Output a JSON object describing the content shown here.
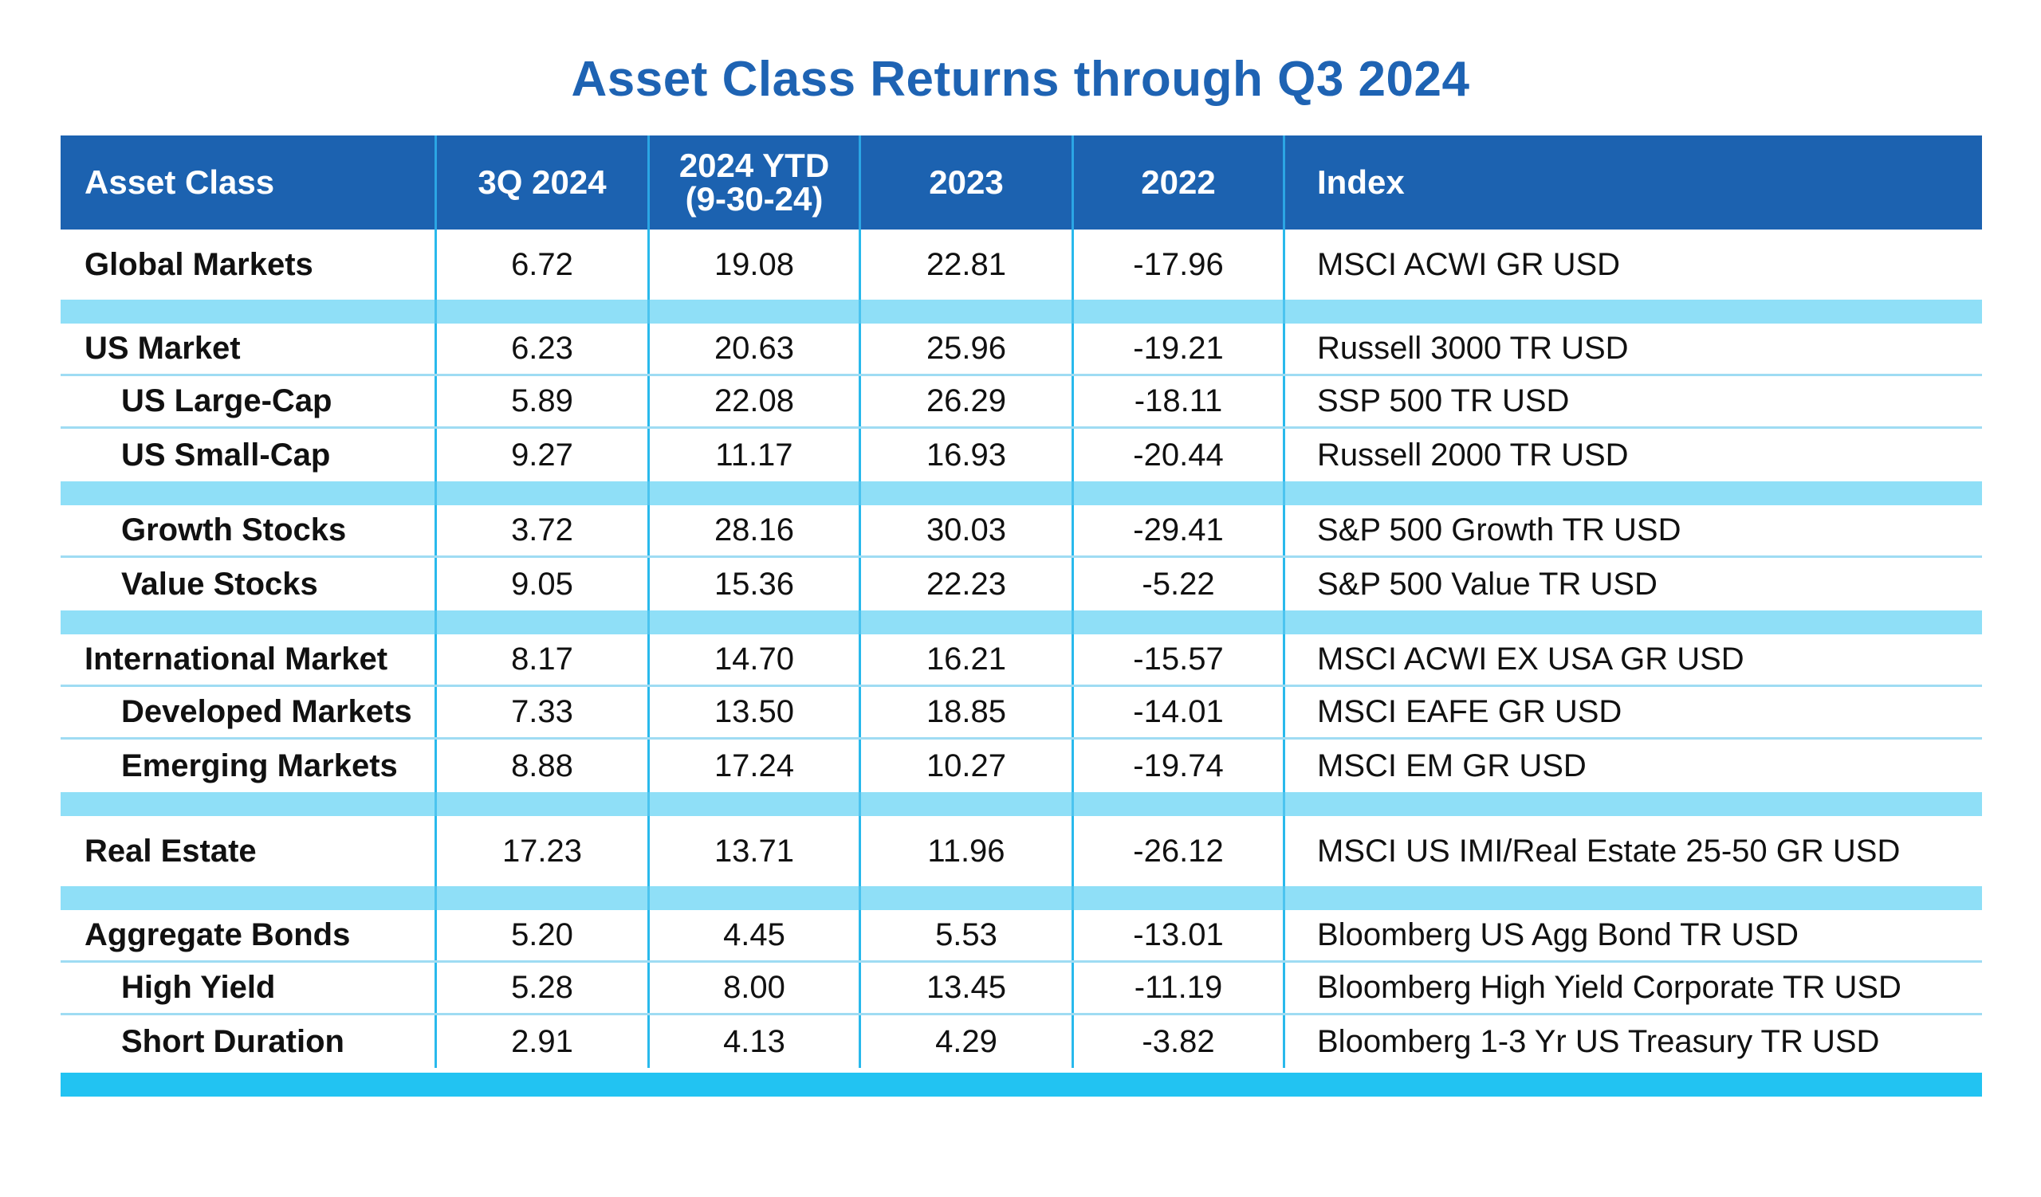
{
  "title": "Asset Class Returns through Q3 2024",
  "colors": {
    "title": "#1e63b3",
    "header_bg": "#1c62b0",
    "separator": "#8fdff7",
    "footer_bar": "#22c3f2",
    "grid_line": "#29b9ec"
  },
  "headers": {
    "asset_class": "Asset Class",
    "q3_2024": "3Q 2024",
    "ytd_line1": "2024 YTD",
    "ytd_line2": "(9-30-24)",
    "y2023": "2023",
    "y2022": "2022",
    "index": "Index"
  },
  "groups": [
    {
      "rows": [
        {
          "asset": "Global Markets",
          "q3": "6.72",
          "ytd": "19.08",
          "y2023": "22.81",
          "y2022": "-17.96",
          "index": "MSCI ACWI GR USD"
        }
      ]
    },
    {
      "rows": [
        {
          "asset": "US Market",
          "q3": "6.23",
          "ytd": "20.63",
          "y2023": "25.96",
          "y2022": "-19.21",
          "index": "Russell 3000 TR USD"
        },
        {
          "asset": "US Large-Cap",
          "q3": "5.89",
          "ytd": "22.08",
          "y2023": "26.29",
          "y2022": "-18.11",
          "index": "SSP 500 TR USD"
        },
        {
          "asset": "US Small-Cap",
          "q3": "9.27",
          "ytd": "11.17",
          "y2023": "16.93",
          "y2022": "-20.44",
          "index": "Russell 2000 TR USD"
        }
      ]
    },
    {
      "rows": [
        {
          "asset": "Growth Stocks",
          "q3": "3.72",
          "ytd": "28.16",
          "y2023": "30.03",
          "y2022": "-29.41",
          "index": "S&P 500 Growth TR USD"
        },
        {
          "asset": "Value Stocks",
          "q3": "9.05",
          "ytd": "15.36",
          "y2023": "22.23",
          "y2022": "-5.22",
          "index": "S&P 500 Value TR USD"
        }
      ]
    },
    {
      "rows": [
        {
          "asset": "International Market",
          "q3": "8.17",
          "ytd": "14.70",
          "y2023": "16.21",
          "y2022": "-15.57",
          "index": "MSCI ACWI EX USA GR USD"
        },
        {
          "asset": "Developed Markets",
          "q3": "7.33",
          "ytd": "13.50",
          "y2023": "18.85",
          "y2022": "-14.01",
          "index": "MSCI EAFE GR USD"
        },
        {
          "asset": "Emerging Markets",
          "q3": "8.88",
          "ytd": "17.24",
          "y2023": "10.27",
          "y2022": "-19.74",
          "index": "MSCI EM GR USD"
        }
      ]
    },
    {
      "rows": [
        {
          "asset": "Real Estate",
          "q3": "17.23",
          "ytd": "13.71",
          "y2023": "11.96",
          "y2022": "-26.12",
          "index": "MSCI US IMI/Real Estate 25-50 GR USD"
        }
      ]
    },
    {
      "rows": [
        {
          "asset": "Aggregate Bonds",
          "q3": "5.20",
          "ytd": "4.45",
          "y2023": "5.53",
          "y2022": "-13.01",
          "index": "Bloomberg US Agg Bond TR USD"
        },
        {
          "asset": "High Yield",
          "q3": "5.28",
          "ytd": "8.00",
          "y2023": "13.45",
          "y2022": "-11.19",
          "index": "Bloomberg High Yield Corporate TR USD"
        },
        {
          "asset": "Short Duration",
          "q3": "2.91",
          "ytd": "4.13",
          "y2023": "4.29",
          "y2022": "-3.82",
          "index": "Bloomberg 1-3 Yr US Treasury TR USD"
        }
      ]
    }
  ]
}
